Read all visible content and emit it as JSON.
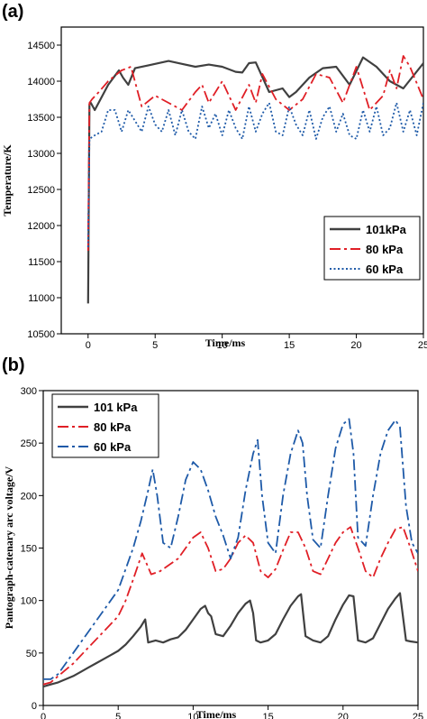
{
  "chart_data": [
    {
      "panel_label": "(a)",
      "type": "line",
      "xlabel": "Time/ms",
      "ylabel": "Temperature/K",
      "xlim": [
        -2,
        25
      ],
      "ylim": [
        10500,
        14750
      ],
      "xticks": [
        0,
        5,
        10,
        15,
        20,
        25
      ],
      "yticks": [
        10500,
        11000,
        11500,
        12000,
        12500,
        13000,
        13500,
        14000,
        14500
      ],
      "xtick_labels": [
        "0",
        "5",
        "10",
        "15",
        "20",
        "25"
      ],
      "ytick_labels": [
        "10500",
        "11000",
        "11500",
        "12000",
        "12500",
        "13000",
        "13500",
        "14000",
        "14500"
      ],
      "legend_position": "middle-right",
      "series": [
        {
          "name": "101kPa",
          "color": "#404040",
          "dash": "solid",
          "x": [
            0,
            0.1,
            0.2,
            0.5,
            1.5,
            2.3,
            2.6,
            3.0,
            3.5,
            4.5,
            6.0,
            7.0,
            8.0,
            9.0,
            10.0,
            11.0,
            11.5,
            12.0,
            12.5,
            13.5,
            14.5,
            15.0,
            15.5,
            16.5,
            17.5,
            18.5,
            19.5,
            20.5,
            21.5,
            22.5,
            23.5,
            25.0
          ],
          "y": [
            10920,
            13680,
            13700,
            13600,
            13950,
            14150,
            14050,
            13950,
            14180,
            14220,
            14280,
            14240,
            14200,
            14230,
            14200,
            14130,
            14120,
            14250,
            14260,
            13850,
            13900,
            13780,
            13850,
            14050,
            14180,
            14200,
            13950,
            14330,
            14200,
            14000,
            13900,
            14250
          ]
        },
        {
          "name": "80  kPa",
          "color": "#e01f26",
          "dash": "dashdot",
          "x": [
            0,
            0.1,
            0.3,
            0.8,
            1.5,
            2.5,
            3.2,
            4.0,
            5.0,
            6.0,
            7.0,
            8.0,
            8.5,
            9.0,
            10.0,
            11.0,
            12.0,
            12.5,
            13.0,
            14.0,
            15.0,
            16.0,
            17.0,
            18.0,
            19.0,
            20.0,
            21.0,
            22.0,
            22.5,
            23.0,
            23.5,
            24.0,
            25.0
          ],
          "y": [
            11650,
            13700,
            13750,
            13850,
            14000,
            14150,
            14200,
            13650,
            13800,
            13700,
            13600,
            13850,
            13950,
            13700,
            14000,
            13600,
            13950,
            13700,
            14100,
            13750,
            13600,
            13750,
            14100,
            14050,
            13700,
            14200,
            13600,
            13800,
            14150,
            13900,
            14350,
            14200,
            13750
          ]
        },
        {
          "name": "60  kPa",
          "color": "#1e5aa8",
          "dash": "dot",
          "x": [
            0,
            0.1,
            0.5,
            1.0,
            1.5,
            2.0,
            2.5,
            3.0,
            3.5,
            4.0,
            4.5,
            5.0,
            5.5,
            6.0,
            6.5,
            7.0,
            7.5,
            8.0,
            8.5,
            9.0,
            9.5,
            10.0,
            10.5,
            11.0,
            11.5,
            12.0,
            12.5,
            13.0,
            13.5,
            14.0,
            14.5,
            15.0,
            15.5,
            16.0,
            16.5,
            17.0,
            17.5,
            18.0,
            18.5,
            19.0,
            19.5,
            20.0,
            20.5,
            21.0,
            21.5,
            22.0,
            22.5,
            23.0,
            23.5,
            24.0,
            24.5,
            25.0
          ],
          "y": [
            11700,
            13200,
            13250,
            13300,
            13600,
            13600,
            13300,
            13600,
            13450,
            13300,
            13650,
            13400,
            13300,
            13600,
            13250,
            13600,
            13300,
            13200,
            13650,
            13350,
            13550,
            13250,
            13600,
            13350,
            13200,
            13650,
            13300,
            13550,
            13700,
            13300,
            13250,
            13650,
            13400,
            13250,
            13600,
            13200,
            13500,
            13650,
            13300,
            13550,
            13250,
            13200,
            13600,
            13300,
            13650,
            13250,
            13350,
            13700,
            13300,
            13600,
            13250,
            13700
          ]
        }
      ]
    },
    {
      "panel_label": "(b)",
      "type": "line",
      "xlabel": "Time/ms",
      "ylabel": "Pantograph-catenary arc voltage/V",
      "xlim": [
        0,
        25
      ],
      "ylim": [
        0,
        300
      ],
      "xticks": [
        0,
        5,
        10,
        15,
        20,
        25
      ],
      "yticks": [
        0,
        50,
        100,
        150,
        200,
        250,
        300
      ],
      "xtick_labels": [
        "0",
        "5",
        "10",
        "15",
        "20",
        "25"
      ],
      "ytick_labels": [
        "0",
        "50",
        "100",
        "150",
        "200",
        "250",
        "300"
      ],
      "legend_position": "top-left",
      "series": [
        {
          "name": "101 kPa",
          "color": "#404040",
          "dash": "solid",
          "x": [
            0,
            0.5,
            1.0,
            1.5,
            2.0,
            2.5,
            3.0,
            3.5,
            4.0,
            4.5,
            5.0,
            5.5,
            6.0,
            6.5,
            6.8,
            7.0,
            7.5,
            8.0,
            8.5,
            9.0,
            9.5,
            10.0,
            10.5,
            10.8,
            11.0,
            11.2,
            11.5,
            12.0,
            12.5,
            13.0,
            13.5,
            13.8,
            14.0,
            14.2,
            14.5,
            15.0,
            15.5,
            16.0,
            16.5,
            17.0,
            17.2,
            17.5,
            18.0,
            18.5,
            19.0,
            19.5,
            20.0,
            20.4,
            20.7,
            21.0,
            21.5,
            22.0,
            22.5,
            23.0,
            23.5,
            23.8,
            24.2,
            24.5,
            25.0
          ],
          "y": [
            18,
            20,
            22,
            25,
            28,
            32,
            36,
            40,
            44,
            48,
            52,
            58,
            66,
            75,
            82,
            60,
            62,
            60,
            63,
            65,
            72,
            82,
            92,
            95,
            88,
            85,
            68,
            66,
            76,
            88,
            97,
            100,
            88,
            62,
            60,
            62,
            68,
            82,
            95,
            104,
            106,
            66,
            62,
            60,
            66,
            82,
            96,
            105,
            104,
            62,
            60,
            64,
            78,
            92,
            102,
            107,
            62,
            61,
            60
          ]
        },
        {
          "name": "80  kPa",
          "color": "#e01f26",
          "dash": "dashdot",
          "x": [
            0,
            0.5,
            1.0,
            2.0,
            3.0,
            4.0,
            5.0,
            5.5,
            6.0,
            6.6,
            7.2,
            7.8,
            8.5,
            9.0,
            9.5,
            10.0,
            10.5,
            11.0,
            11.5,
            12.0,
            12.5,
            13.0,
            13.5,
            14.0,
            14.5,
            15.0,
            15.5,
            16.0,
            16.5,
            17.0,
            17.5,
            18.0,
            18.5,
            19.0,
            19.5,
            20.0,
            20.5,
            21.0,
            21.5,
            22.0,
            22.5,
            23.0,
            23.5,
            24.0,
            24.5,
            25.0
          ],
          "y": [
            20,
            22,
            28,
            40,
            55,
            70,
            85,
            100,
            120,
            145,
            125,
            128,
            135,
            140,
            150,
            160,
            165,
            150,
            128,
            130,
            140,
            155,
            162,
            155,
            128,
            122,
            130,
            148,
            165,
            165,
            150,
            128,
            125,
            140,
            155,
            165,
            170,
            150,
            128,
            122,
            140,
            155,
            168,
            170,
            150,
            128
          ]
        },
        {
          "name": "60  kPa",
          "color": "#1e5aa8",
          "dash": "dashdot",
          "x": [
            0,
            0.5,
            1.0,
            2.0,
            3.0,
            4.0,
            5.0,
            5.5,
            6.0,
            6.5,
            7.0,
            7.3,
            7.6,
            8.0,
            8.5,
            9.0,
            9.5,
            10.0,
            10.5,
            11.0,
            11.5,
            12.0,
            12.5,
            13.0,
            13.5,
            14.0,
            14.3,
            14.6,
            15.0,
            15.5,
            16.0,
            16.5,
            17.0,
            17.3,
            17.6,
            18.0,
            18.5,
            19.0,
            19.5,
            20.0,
            20.4,
            20.7,
            21.0,
            21.5,
            22.0,
            22.5,
            23.0,
            23.5,
            23.8,
            24.2,
            24.6,
            25.0
          ],
          "y": [
            25,
            25,
            30,
            50,
            70,
            90,
            110,
            130,
            150,
            175,
            205,
            225,
            200,
            155,
            150,
            180,
            215,
            232,
            225,
            205,
            180,
            162,
            140,
            160,
            205,
            240,
            253,
            200,
            155,
            145,
            200,
            240,
            262,
            250,
            200,
            158,
            150,
            200,
            245,
            268,
            273,
            240,
            160,
            152,
            200,
            240,
            262,
            272,
            265,
            190,
            155,
            145
          ]
        }
      ]
    }
  ]
}
